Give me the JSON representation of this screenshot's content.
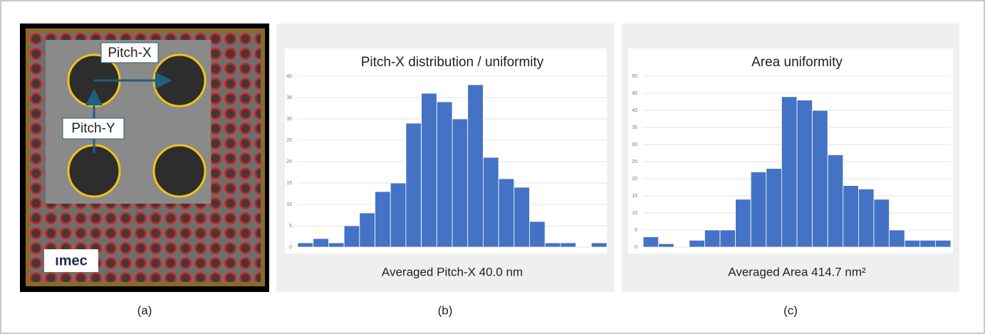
{
  "image": {
    "labels": [
      "Pitch-X",
      "Pitch-Y"
    ],
    "logo": "ımec"
  },
  "captions": [
    "(a)",
    "(b)",
    "(c)"
  ],
  "chart_data": [
    {
      "type": "bar",
      "title": "Pitch-X distribution / uniformity",
      "subtitle": "Averaged Pitch-X 40.0 nm",
      "values": [
        1,
        2,
        1,
        5,
        8,
        13,
        15,
        29,
        36,
        34,
        30,
        38,
        21,
        16,
        14,
        6,
        1,
        1,
        0,
        1
      ],
      "color": "#4472c4",
      "ylim": [
        0,
        40
      ],
      "yticks": [
        0,
        5,
        10,
        15,
        20,
        25,
        30,
        35,
        40
      ],
      "grid": true
    },
    {
      "type": "bar",
      "title": "Area uniformity",
      "subtitle": "Averaged Area 414.7 nm²",
      "values": [
        3,
        1,
        0,
        2,
        5,
        5,
        14,
        22,
        23,
        44,
        43,
        40,
        27,
        18,
        17,
        14,
        5,
        2,
        2,
        2
      ],
      "color": "#4472c4",
      "ylim": [
        0,
        50
      ],
      "yticks": [
        0,
        5,
        10,
        15,
        20,
        25,
        30,
        35,
        40,
        45,
        50
      ],
      "grid": true
    }
  ]
}
